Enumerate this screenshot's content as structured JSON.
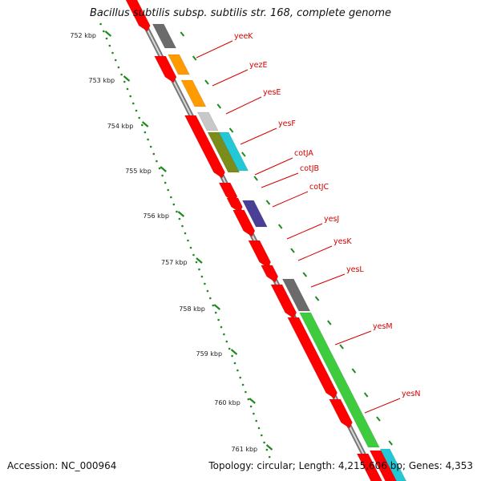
{
  "title": "Bacillus subtilis subsp. subtilis str. 168, complete genome",
  "accession_text": "Accession: NC_000964",
  "summary_text": "Topology: circular; Length: 4,215,606 bp; Genes: 4,353",
  "colors": {
    "backbone": "#888888",
    "ruler": "#1f8a1f",
    "label": "#d40000",
    "gene_forward": "#ff0000",
    "gene_reverse": "#ff0000",
    "gray_dark": "#6b6b6b",
    "gray_light": "#c8c8c8",
    "orange": "#ff9a00",
    "cyan": "#22c8d6",
    "olive": "#7a8c1a",
    "purple": "#4a3f96",
    "green": "#3ecb3e"
  },
  "ruler_labels": [
    "752 kbp",
    "753 kbp",
    "754 kbp",
    "755 kbp",
    "756 kbp",
    "757 kbp",
    "758 kbp",
    "759 kbp",
    "760 kbp",
    "761 kbp"
  ],
  "gene_labels": [
    "yeeK",
    "yezE",
    "yesE",
    "yesF",
    "cotJA",
    "cotJB",
    "cotJC",
    "yesJ",
    "yesK",
    "yesL",
    "yesM",
    "yesN"
  ]
}
